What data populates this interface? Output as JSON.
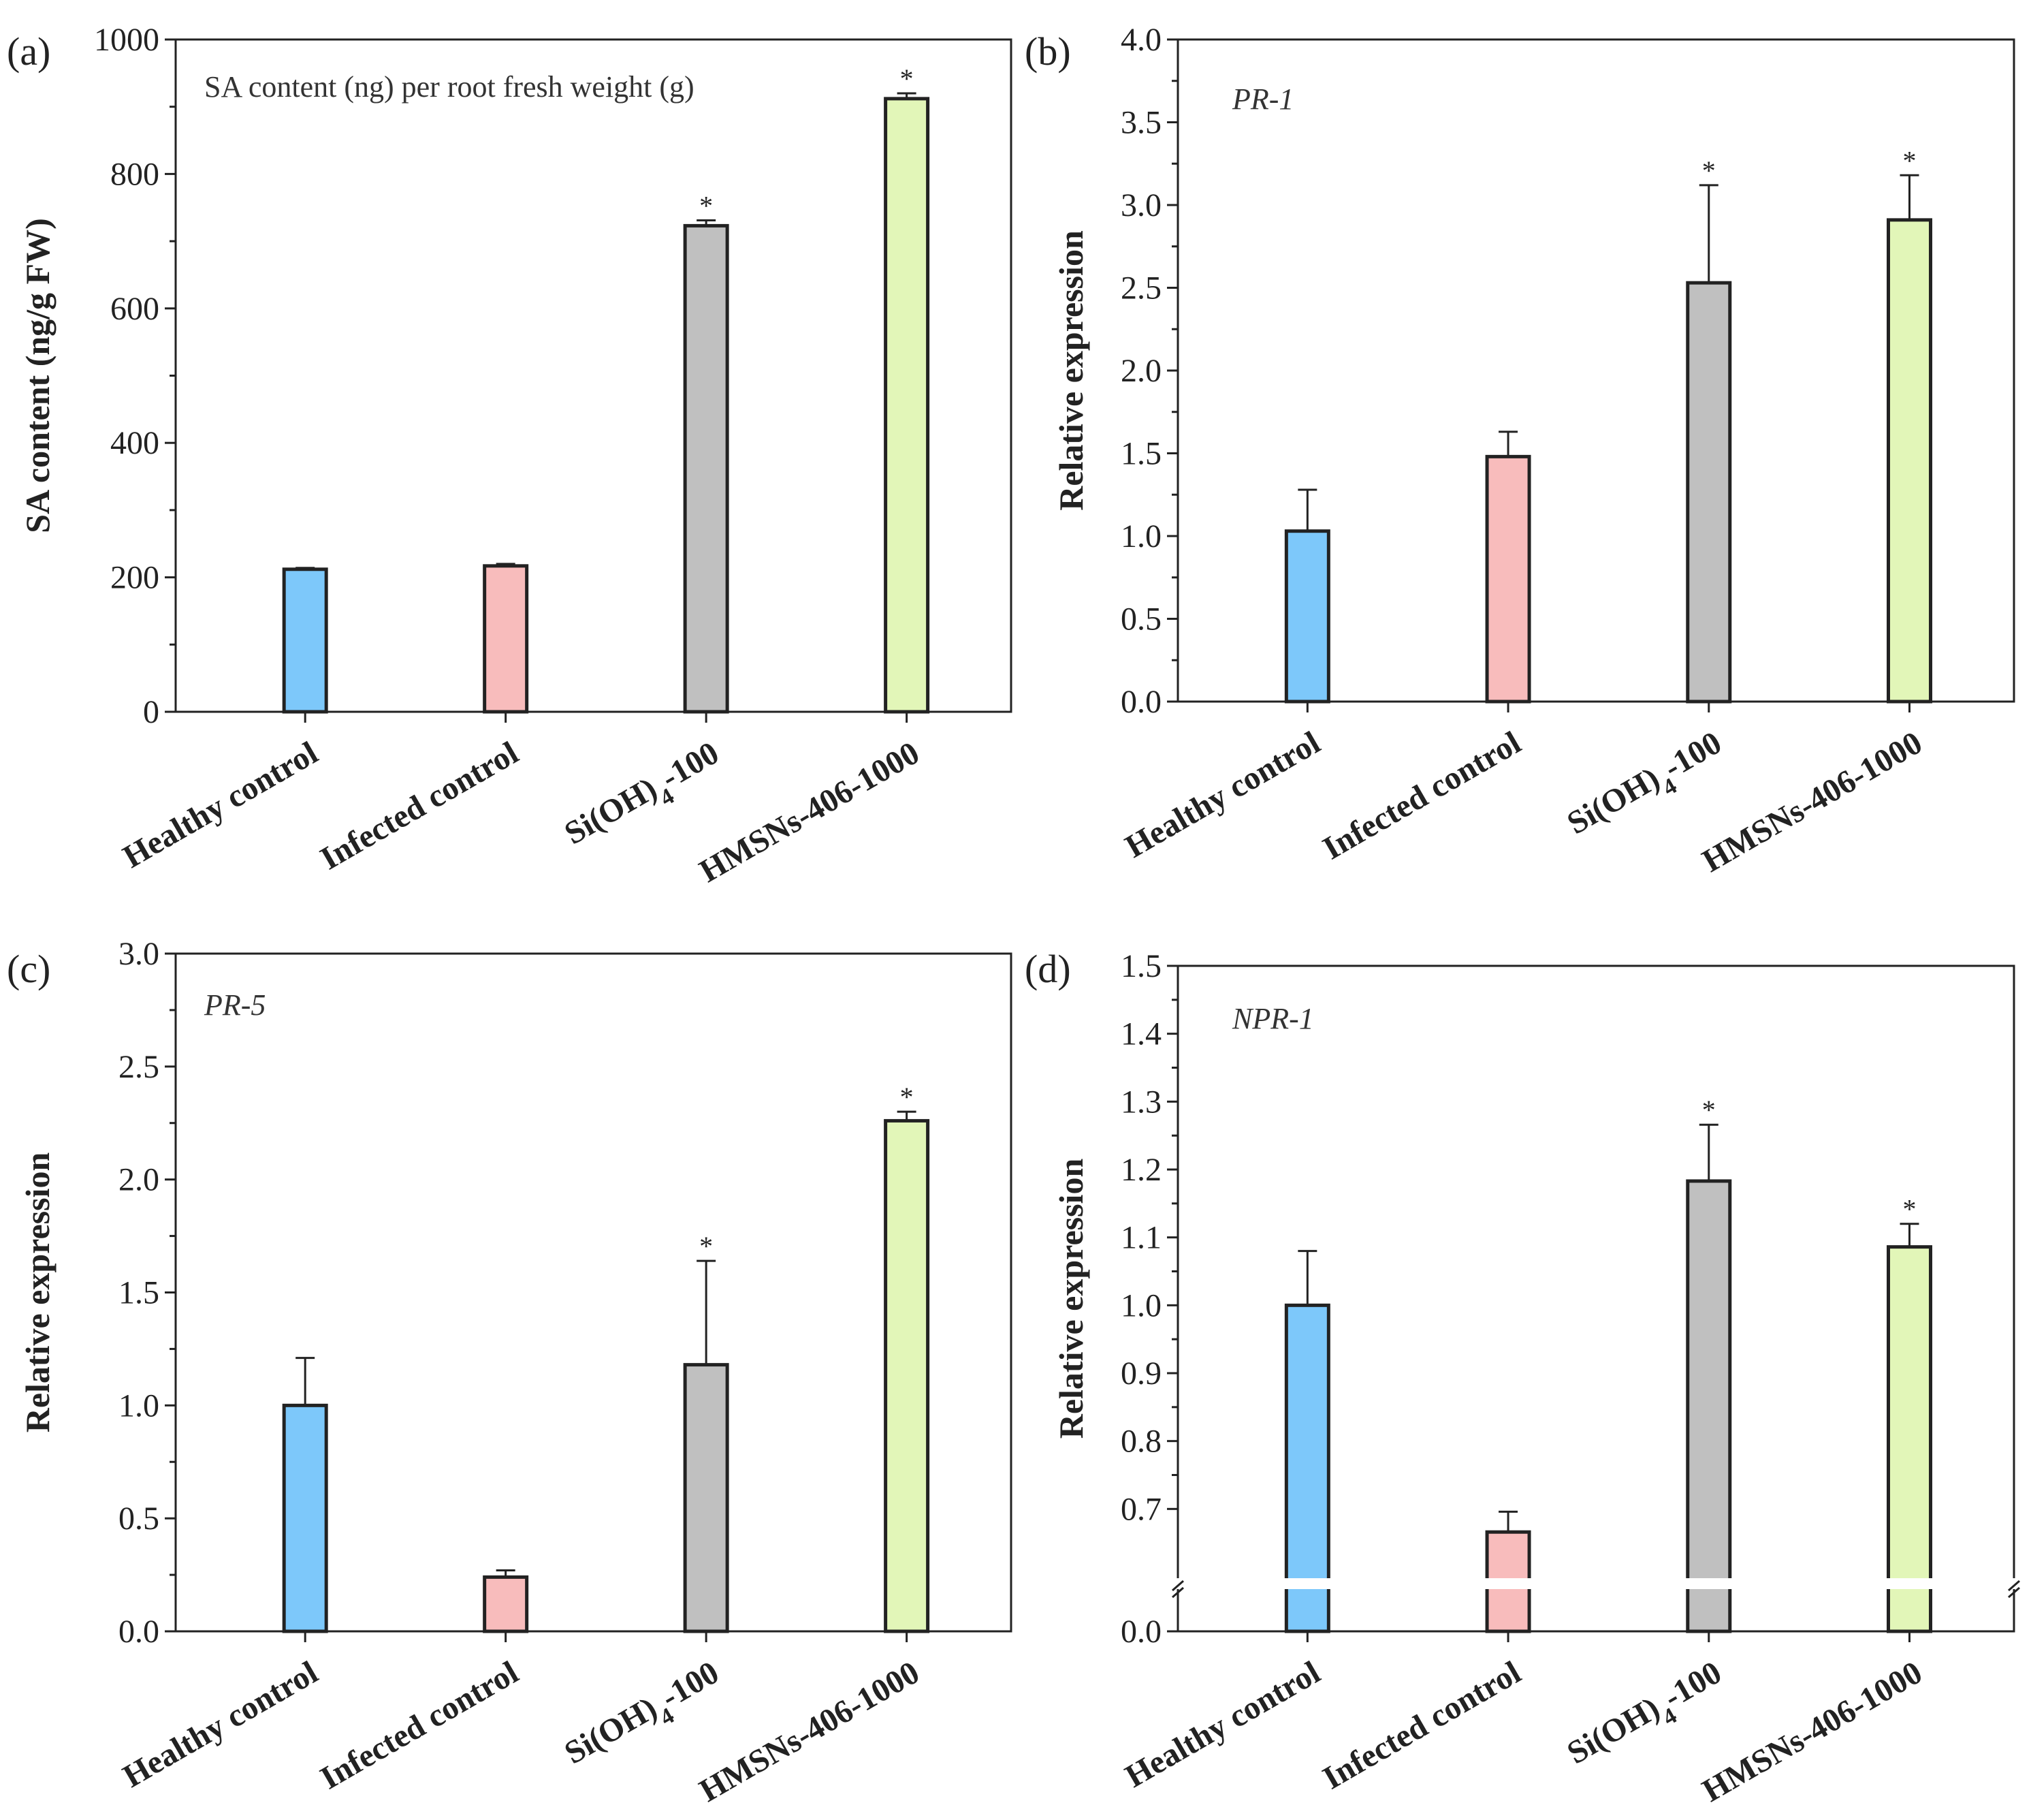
{
  "colors": {
    "healthy": "#7dc8fa",
    "infected": "#f8bcbc",
    "si": "#c0c0c0",
    "hmsn": "#e2f6b8",
    "axis": "#222222"
  },
  "chart_data": [
    {
      "type": "bar",
      "panel": "(a)",
      "annotation": "SA content (ng) per root fresh weight (g)",
      "annotation_italic": false,
      "ylabel": "SA content (ng/g FW)",
      "ylim": [
        0,
        1000
      ],
      "yticks": [
        "0",
        "200",
        "400",
        "600",
        "800",
        "1000"
      ],
      "ytick_values": [
        0,
        200,
        400,
        600,
        800,
        1000
      ],
      "categories": [
        "Healthy control",
        "Infected control",
        "Si(OH)4-100",
        "HMSNs-406-1000"
      ],
      "values": [
        212,
        217,
        723,
        912
      ],
      "errors": [
        2,
        3,
        8,
        8
      ],
      "significance": [
        "",
        "",
        "*",
        "*"
      ],
      "axis_break": false
    },
    {
      "type": "bar",
      "panel": "(b)",
      "annotation": "PR-1",
      "annotation_italic": true,
      "ylabel": "Relative expression",
      "ylim": [
        0,
        4.0
      ],
      "yticks": [
        "0.0",
        "0.5",
        "1.0",
        "1.5",
        "2.0",
        "2.5",
        "3.0",
        "3.5",
        "4.0"
      ],
      "ytick_values": [
        0,
        0.5,
        1.0,
        1.5,
        2.0,
        2.5,
        3.0,
        3.5,
        4.0
      ],
      "categories": [
        "Healthy control",
        "Infected control",
        "Si(OH)4-100",
        "HMSNs-406-1000"
      ],
      "values": [
        1.03,
        1.48,
        2.53,
        2.91
      ],
      "errors": [
        0.25,
        0.15,
        0.59,
        0.27
      ],
      "significance": [
        "",
        "",
        "*",
        "*"
      ],
      "axis_break": false
    },
    {
      "type": "bar",
      "panel": "(c)",
      "annotation": "PR-5",
      "annotation_italic": true,
      "ylabel": "Relative expression",
      "ylim": [
        0,
        3.0
      ],
      "yticks": [
        "0.0",
        "0.5",
        "1.0",
        "1.5",
        "2.0",
        "2.5",
        "3.0"
      ],
      "ytick_values": [
        0,
        0.5,
        1.0,
        1.5,
        2.0,
        2.5,
        3.0
      ],
      "categories": [
        "Healthy control",
        "Infected control",
        "Si(OH)4-100",
        "HMSNs-406-1000"
      ],
      "values": [
        1.0,
        0.24,
        1.18,
        2.26
      ],
      "errors": [
        0.21,
        0.03,
        0.46,
        0.04
      ],
      "significance": [
        "",
        "",
        "*",
        "*"
      ],
      "axis_break": false
    },
    {
      "type": "bar",
      "panel": "(d)",
      "annotation": "NPR-1",
      "annotation_italic": true,
      "ylabel": "Relative expression",
      "ylim": [
        0,
        1.5
      ],
      "broken_axis_lower": [
        0,
        0.05
      ],
      "broken_axis_upper": [
        0.6,
        1.5
      ],
      "yticks": [
        "0.0",
        "0.7",
        "0.8",
        "0.9",
        "1.0",
        "1.1",
        "1.2",
        "1.3",
        "1.4",
        "1.5"
      ],
      "ytick_values": [
        0,
        0.7,
        0.8,
        0.9,
        1.0,
        1.1,
        1.2,
        1.3,
        1.4,
        1.5
      ],
      "categories": [
        "Healthy control",
        "Infected control",
        "Si(OH)4-100",
        "HMSNs-406-1000"
      ],
      "values": [
        1.0,
        0.666,
        1.183,
        1.086
      ],
      "errors": [
        0.08,
        0.03,
        0.083,
        0.034
      ],
      "significance": [
        "",
        "",
        "*",
        "*"
      ],
      "axis_break": true
    }
  ]
}
